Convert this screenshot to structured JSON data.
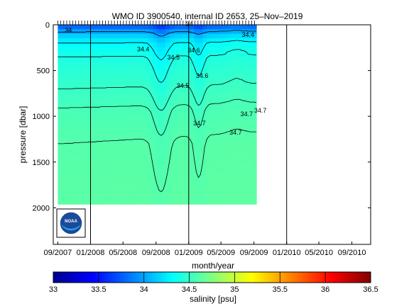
{
  "chart_data": {
    "type": "heatmap",
    "title": "WMO ID 3900540, internal ID 2653, 25–Nov–2019",
    "xlabel": "month/year",
    "ylabel": "pressure [dbar]",
    "x_ticks": [
      "09/2007",
      "01/2008",
      "05/2008",
      "09/2008",
      "01/2009",
      "05/2009",
      "09/2009",
      "01/2010",
      "05/2010",
      "09/2010"
    ],
    "y_ticks": [
      0,
      500,
      1000,
      1500,
      2000
    ],
    "ylim": [
      2400,
      0
    ],
    "xlim": [
      "2007-08-15",
      "2010-11-10"
    ],
    "data_extent": {
      "start": "2007-09-01",
      "end": "2009-09-10",
      "max_pressure": 1960
    },
    "year_boundaries": [
      "2008-01-01",
      "2009-01-01",
      "2010-01-01"
    ],
    "colorbar": {
      "label": "salinity [psu]",
      "range": [
        33,
        36.5
      ],
      "ticks": [
        "33",
        "33.5",
        "34",
        "34.5",
        "35",
        "35.5",
        "36",
        "36.5"
      ],
      "colormap": "jet"
    },
    "contour_labels": [
      {
        "text": "34",
        "date": "2007-10-10",
        "pressure": 80
      },
      {
        "text": "34",
        "date": "2009-01-03",
        "pressure": 15
      },
      {
        "text": "34.4",
        "date": "2009-08-10",
        "pressure": 130
      },
      {
        "text": "34.4",
        "date": "2008-07-15",
        "pressure": 290
      },
      {
        "text": "34.5",
        "date": "2008-11-05",
        "pressure": 380
      },
      {
        "text": "34.6",
        "date": "2009-01-20",
        "pressure": 300
      },
      {
        "text": "34.5",
        "date": "2008-12-10",
        "pressure": 690
      },
      {
        "text": "34.6",
        "date": "2009-02-20",
        "pressure": 580
      },
      {
        "text": "34.7",
        "date": "2009-02-10",
        "pressure": 1100
      },
      {
        "text": "34.7",
        "date": "2009-08-05",
        "pressure": 1000
      },
      {
        "text": "34.7",
        "date": "2009-06-25",
        "pressure": 1200
      },
      {
        "text": "34.7",
        "date": "2009-09-25",
        "pressure": 960
      }
    ],
    "grid": false,
    "logo": "NOAA"
  },
  "logo": {
    "name": "noaa-logo",
    "text": "NOAA"
  },
  "colors": {
    "jet": [
      "#00008f",
      "#0000ff",
      "#0080ff",
      "#00ffff",
      "#80ff80",
      "#ffff00",
      "#ff8000",
      "#ff0000",
      "#800000"
    ],
    "contour": "#000000",
    "logo_blue": "#1a4b9b",
    "logo_light": "#29a8e0"
  }
}
